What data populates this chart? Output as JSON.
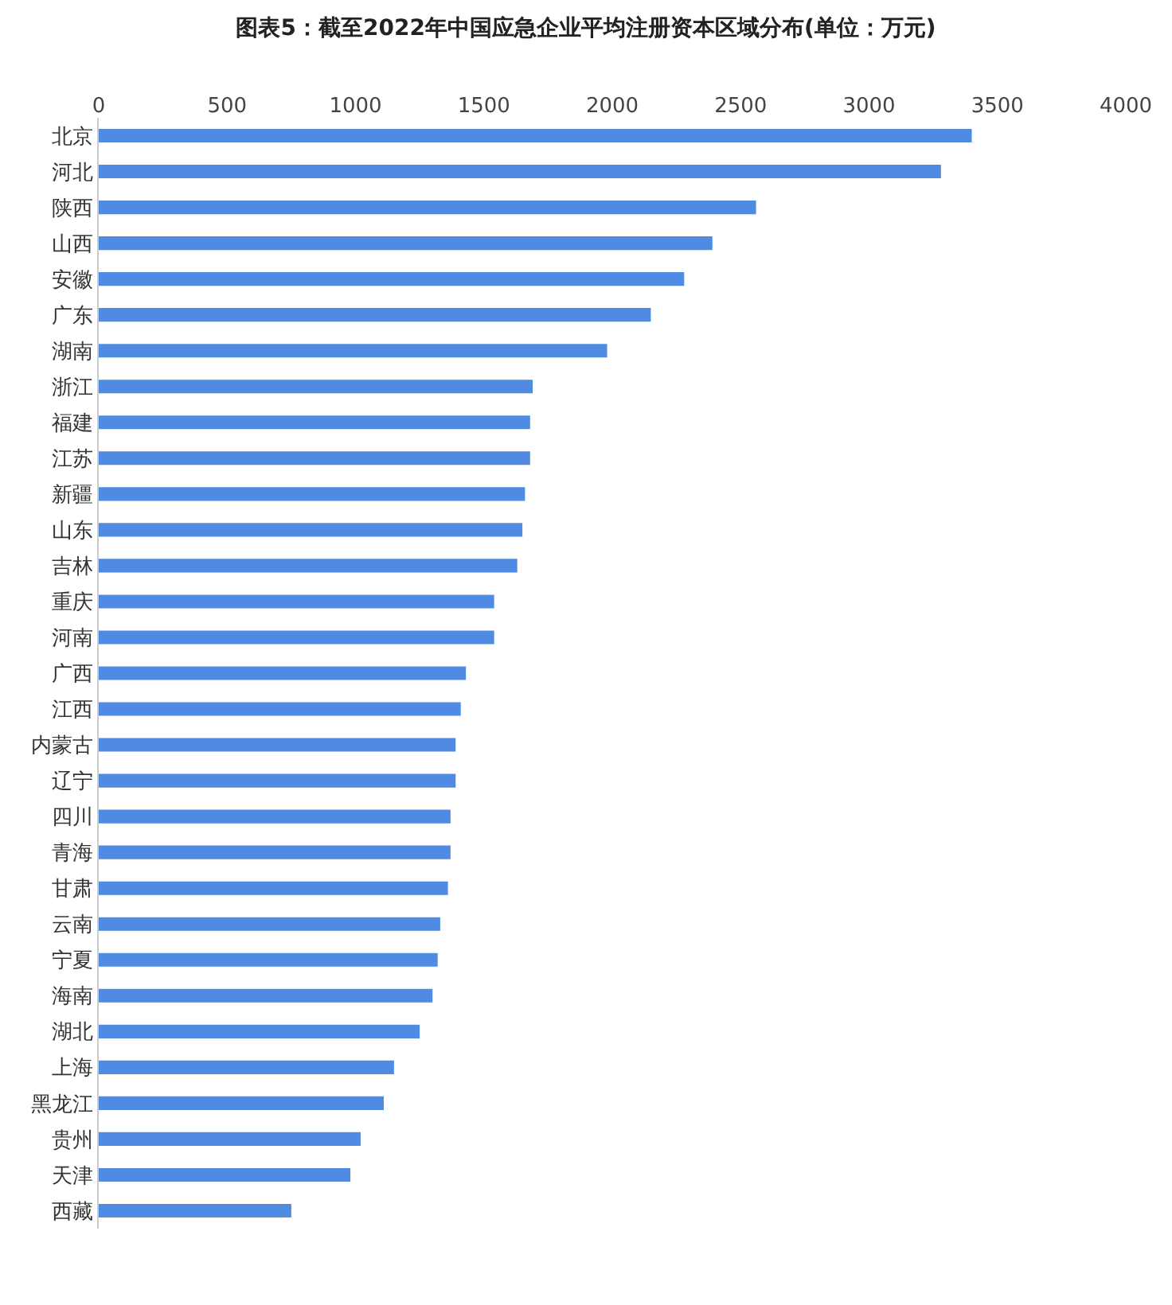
{
  "chart_data": {
    "type": "bar",
    "orientation": "horizontal",
    "title": "图表5：截至2022年中国应急企业平均注册资本区域分布(单位：万元)",
    "categories": [
      "北京",
      "河北",
      "陕西",
      "山西",
      "安徽",
      "广东",
      "湖南",
      "浙江",
      "福建",
      "江苏",
      "新疆",
      "山东",
      "吉林",
      "重庆",
      "河南",
      "广西",
      "江西",
      "内蒙古",
      "辽宁",
      "四川",
      "青海",
      "甘肃",
      "云南",
      "宁夏",
      "海南",
      "湖北",
      "上海",
      "黑龙江",
      "贵州",
      "天津",
      "西藏"
    ],
    "values": [
      3400,
      3280,
      2560,
      2390,
      2280,
      2150,
      1980,
      1690,
      1680,
      1680,
      1660,
      1650,
      1630,
      1540,
      1540,
      1430,
      1410,
      1390,
      1390,
      1370,
      1370,
      1360,
      1330,
      1320,
      1300,
      1250,
      1150,
      1110,
      1020,
      980,
      750
    ],
    "color": "#4f8be3",
    "xlim": [
      0,
      4000
    ],
    "xticks": [
      0,
      500,
      1000,
      1500,
      2000,
      2500,
      3000,
      3500,
      4000
    ]
  }
}
